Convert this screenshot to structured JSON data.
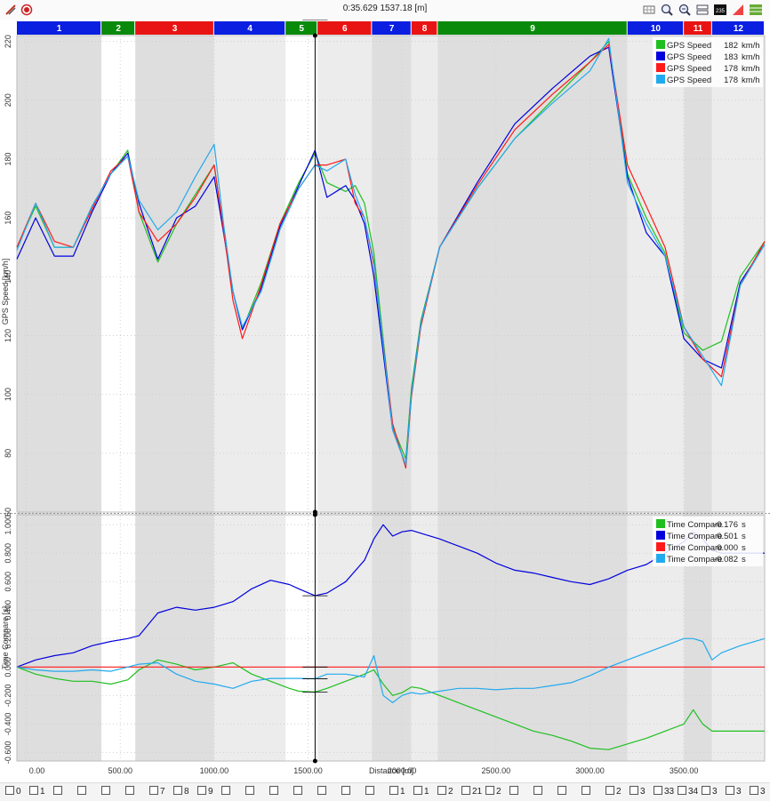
{
  "window": {
    "title": "0:35.629 1537.18 [m]"
  },
  "toolbar": {
    "left_icons": [
      "draw-icon",
      "record-icon"
    ],
    "right_icons": [
      "data-table-icon",
      "zoom-in-icon",
      "zoom-out-icon",
      "layout-icon",
      "channel-235-icon",
      "delta-icon",
      "layers-icon"
    ],
    "channel_badge": "235"
  },
  "colors": {
    "green": "#1fbf1f",
    "blue": "#0000dd",
    "red": "#ff1a1a",
    "cyan": "#22aaee",
    "sector_blue": "#0a1fe0",
    "sector_green": "#0a8a0a",
    "sector_red": "#e81414"
  },
  "sectors": [
    {
      "label": "1",
      "start": -50,
      "end": 400,
      "color": "blue"
    },
    {
      "label": "2",
      "start": 400,
      "end": 580,
      "color": "green"
    },
    {
      "label": "3",
      "start": 580,
      "end": 1000,
      "color": "red"
    },
    {
      "label": "4",
      "start": 1000,
      "end": 1380,
      "color": "blue"
    },
    {
      "label": "5",
      "start": 1380,
      "end": 1550,
      "color": "green"
    },
    {
      "label": "6",
      "start": 1550,
      "end": 1840,
      "color": "red"
    },
    {
      "label": "7",
      "start": 1840,
      "end": 2050,
      "color": "blue"
    },
    {
      "label": "8",
      "start": 2050,
      "end": 2190,
      "color": "red"
    },
    {
      "label": "9",
      "start": 2190,
      "end": 3200,
      "color": "green"
    },
    {
      "label": "10",
      "start": 3200,
      "end": 3500,
      "color": "blue"
    },
    {
      "label": "11",
      "start": 3500,
      "end": 3650,
      "color": "red"
    },
    {
      "label": "12",
      "start": 3650,
      "end": 3930,
      "color": "blue"
    }
  ],
  "chart_data": [
    {
      "type": "line",
      "ylabel": "GPS Speed [km/h]",
      "xlim": [
        -50,
        3930
      ],
      "ylim": [
        60,
        222
      ],
      "yticks": [
        "220",
        "200",
        "180",
        "160",
        "140",
        "120",
        "100",
        "80",
        "60"
      ],
      "cursor_x": 1537.18,
      "legend_position": "top-right",
      "x": [
        -50,
        50,
        150,
        250,
        350,
        450,
        540,
        600,
        700,
        800,
        900,
        1000,
        1050,
        1100,
        1150,
        1250,
        1350,
        1450,
        1537,
        1600,
        1700,
        1750,
        1800,
        1850,
        1950,
        2020,
        2050,
        2100,
        2200,
        2400,
        2600,
        2800,
        3000,
        3100,
        3200,
        3300,
        3400,
        3500,
        3600,
        3700,
        3800,
        3930
      ],
      "series": [
        {
          "name": "GPS Speed",
          "legend_value": "182",
          "legend_unit": "km/h",
          "color": "green",
          "values": [
            150,
            164,
            150,
            150,
            164,
            175,
            183,
            162,
            145,
            158,
            168,
            178,
            156,
            135,
            122,
            138,
            158,
            172,
            182,
            172,
            169,
            171,
            165,
            148,
            89,
            78,
            102,
            125,
            150,
            170,
            187,
            200,
            213,
            220,
            175,
            160,
            148,
            121,
            115,
            118,
            140,
            152
          ]
        },
        {
          "name": "GPS Speed",
          "legend_value": "183",
          "legend_unit": "km/h",
          "color": "blue",
          "values": [
            146,
            160,
            147,
            147,
            162,
            175,
            182,
            165,
            146,
            160,
            164,
            174,
            155,
            135,
            122,
            136,
            157,
            171,
            183,
            167,
            171,
            166,
            158,
            140,
            88,
            76,
            100,
            124,
            150,
            172,
            192,
            204,
            215,
            218,
            174,
            155,
            147,
            119,
            112,
            109,
            138,
            151
          ]
        },
        {
          "name": "GPS Speed",
          "legend_value": "178",
          "legend_unit": "km/h",
          "color": "red",
          "values": [
            150,
            165,
            152,
            150,
            163,
            176,
            181,
            162,
            152,
            158,
            167,
            178,
            156,
            132,
            119,
            137,
            158,
            170,
            178,
            178,
            180,
            165,
            160,
            144,
            90,
            75,
            99,
            123,
            150,
            171,
            190,
            202,
            213,
            219,
            178,
            164,
            150,
            123,
            112,
            106,
            137,
            152
          ]
        },
        {
          "name": "GPS Speed",
          "legend_value": "178",
          "legend_unit": "km/h",
          "color": "cyan",
          "values": [
            149,
            165,
            150,
            150,
            164,
            175,
            181,
            166,
            156,
            162,
            174,
            185,
            158,
            135,
            123,
            135,
            156,
            170,
            178,
            176,
            180,
            168,
            160,
            145,
            88,
            76,
            100,
            124,
            150,
            170,
            187,
            199,
            210,
            221,
            172,
            158,
            147,
            123,
            113,
            103,
            137,
            151
          ]
        }
      ]
    },
    {
      "type": "line",
      "ylabel": "Time Compare [s]",
      "xlabel": "Distance [m]",
      "xlim": [
        -50,
        3930
      ],
      "ylim": [
        -0.66,
        1.07
      ],
      "yticks": [
        "1.000",
        "0.800",
        "0.600",
        "0.400",
        "0.200",
        "0.000",
        "-0.200",
        "-0.400",
        "-0.600"
      ],
      "xticks": [
        "0.00",
        "500.00",
        "1000.00",
        "1500.00",
        "2000.00",
        "2500.00",
        "3000.00",
        "3500.00"
      ],
      "xtick_values": [
        0,
        500,
        1000,
        1500,
        2000,
        2500,
        3000,
        3500
      ],
      "legend_position": "top-right",
      "x": [
        -50,
        50,
        150,
        250,
        350,
        450,
        540,
        600,
        700,
        800,
        900,
        1000,
        1100,
        1200,
        1300,
        1400,
        1450,
        1537,
        1600,
        1700,
        1800,
        1850,
        1900,
        1950,
        2000,
        2050,
        2100,
        2200,
        2300,
        2400,
        2500,
        2600,
        2700,
        2800,
        2900,
        3000,
        3100,
        3200,
        3300,
        3400,
        3500,
        3550,
        3600,
        3650,
        3700,
        3800,
        3930
      ],
      "series": [
        {
          "name": "Time Compare",
          "legend_value": "-0.176",
          "legend_unit": "s",
          "color": "green",
          "values": [
            0.0,
            -0.05,
            -0.08,
            -0.1,
            -0.1,
            -0.12,
            -0.09,
            -0.02,
            0.05,
            0.02,
            -0.02,
            0.0,
            0.03,
            -0.05,
            -0.1,
            -0.15,
            -0.17,
            -0.176,
            -0.15,
            -0.1,
            -0.05,
            -0.02,
            -0.12,
            -0.2,
            -0.18,
            -0.14,
            -0.15,
            -0.2,
            -0.25,
            -0.3,
            -0.35,
            -0.4,
            -0.45,
            -0.48,
            -0.52,
            -0.57,
            -0.58,
            -0.54,
            -0.5,
            -0.45,
            -0.4,
            -0.3,
            -0.4,
            -0.45,
            -0.45,
            -0.45,
            -0.45
          ]
        },
        {
          "name": "Time Compare",
          "legend_value": "0.501",
          "legend_unit": "s",
          "color": "blue",
          "values": [
            0.0,
            0.05,
            0.08,
            0.1,
            0.15,
            0.18,
            0.2,
            0.22,
            0.38,
            0.42,
            0.4,
            0.42,
            0.46,
            0.55,
            0.61,
            0.58,
            0.55,
            0.501,
            0.52,
            0.6,
            0.75,
            0.9,
            1.0,
            0.92,
            0.95,
            0.96,
            0.94,
            0.9,
            0.85,
            0.8,
            0.73,
            0.68,
            0.66,
            0.63,
            0.6,
            0.58,
            0.62,
            0.68,
            0.72,
            0.8,
            0.88,
            0.95,
            0.9,
            0.82,
            0.8,
            0.8,
            0.8
          ]
        },
        {
          "name": "Time Compare",
          "legend_value": "0.000",
          "legend_unit": "s",
          "color": "red",
          "values": [
            0.0,
            0.0,
            0.0,
            0.0,
            0.0,
            0.0,
            0.0,
            0.0,
            0.0,
            0.0,
            0.0,
            0.0,
            0.0,
            0.0,
            0.0,
            0.0,
            0.0,
            0.0,
            0.0,
            0.0,
            0.0,
            0.0,
            0.0,
            0.0,
            0.0,
            0.0,
            0.0,
            0.0,
            0.0,
            0.0,
            0.0,
            0.0,
            0.0,
            0.0,
            0.0,
            0.0,
            0.0,
            0.0,
            0.0,
            0.0,
            0.0,
            0.0,
            0.0,
            0.0,
            0.0,
            0.0,
            0.0
          ]
        },
        {
          "name": "Time Compare",
          "legend_value": "-0.082",
          "legend_unit": "s",
          "color": "cyan",
          "values": [
            0.0,
            -0.02,
            -0.03,
            -0.03,
            -0.02,
            -0.03,
            0.0,
            0.02,
            0.03,
            -0.05,
            -0.1,
            -0.12,
            -0.15,
            -0.1,
            -0.08,
            -0.08,
            -0.08,
            -0.082,
            -0.05,
            -0.05,
            -0.07,
            0.08,
            -0.2,
            -0.25,
            -0.2,
            -0.18,
            -0.19,
            -0.17,
            -0.15,
            -0.15,
            -0.16,
            -0.15,
            -0.15,
            -0.13,
            -0.11,
            -0.06,
            0.0,
            0.05,
            0.1,
            0.15,
            0.2,
            0.2,
            0.18,
            0.05,
            0.1,
            0.15,
            0.2
          ]
        }
      ]
    }
  ],
  "lap_bar": {
    "items": [
      "0",
      "1",
      "",
      "",
      "",
      "",
      "7",
      "8",
      "9",
      "",
      "",
      "",
      "",
      "",
      "",
      "",
      "1",
      "1",
      "2",
      "21",
      "2",
      "",
      "",
      "",
      "",
      "2",
      "3",
      "33",
      "34",
      "3",
      "3",
      "3"
    ]
  }
}
